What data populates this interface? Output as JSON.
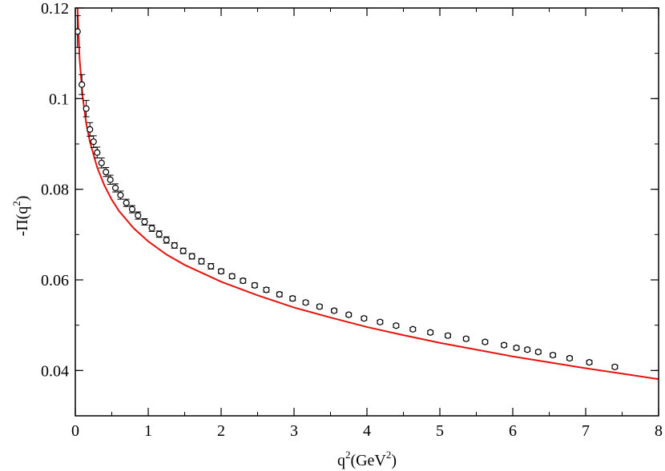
{
  "chart_data": {
    "type": "scatter",
    "title": "",
    "xlabel": {
      "base": "q",
      "sup": "2",
      "rest": "(GeV",
      "sup2": "2",
      "close": ")"
    },
    "ylabel": {
      "prefix": "-Π(q",
      "sup": "2",
      "close": ")"
    },
    "xlim": [
      0,
      8
    ],
    "ylim": [
      0.03,
      0.12
    ],
    "xticks": [
      0,
      1,
      2,
      3,
      4,
      5,
      6,
      7,
      8
    ],
    "yticks": [
      0.04,
      0.06,
      0.08,
      0.1,
      0.12
    ],
    "ytick_labels": [
      "0.04",
      "0.06",
      "0.08",
      "0.1",
      "0.12"
    ],
    "grid": false,
    "legend": "none",
    "colors": {
      "points": "#000000",
      "fit": "#e8120c"
    },
    "series": [
      {
        "kind": "points-with-errorbars",
        "marker": "open-circle",
        "x": [
          0.03,
          0.09,
          0.15,
          0.2,
          0.25,
          0.3,
          0.36,
          0.42,
          0.48,
          0.55,
          0.62,
          0.7,
          0.78,
          0.86,
          0.95,
          1.05,
          1.15,
          1.25,
          1.36,
          1.48,
          1.6,
          1.73,
          1.86,
          2.0,
          2.15,
          2.3,
          2.46,
          2.62,
          2.8,
          2.98,
          3.16,
          3.35,
          3.55,
          3.75,
          3.96,
          4.18,
          4.4,
          4.63,
          4.87,
          5.11,
          5.36,
          5.62,
          5.88,
          6.05,
          6.2,
          6.35,
          6.55,
          6.78,
          7.05,
          7.4
        ],
        "y": [
          0.1148,
          0.1031,
          0.0978,
          0.0932,
          0.0905,
          0.0881,
          0.0858,
          0.0838,
          0.0821,
          0.0803,
          0.0787,
          0.077,
          0.0756,
          0.0742,
          0.0728,
          0.0714,
          0.0701,
          0.0688,
          0.0676,
          0.0664,
          0.0652,
          0.0641,
          0.063,
          0.0619,
          0.0608,
          0.0598,
          0.0588,
          0.0578,
          0.0568,
          0.0559,
          0.055,
          0.0541,
          0.0532,
          0.0523,
          0.0515,
          0.0507,
          0.0499,
          0.0491,
          0.0484,
          0.0477,
          0.047,
          0.0463,
          0.0456,
          0.045,
          0.0446,
          0.0441,
          0.0434,
          0.0427,
          0.0418,
          0.0408
        ],
        "err": [
          0.0035,
          0.0022,
          0.0018,
          0.0015,
          0.0013,
          0.0012,
          0.0011,
          0.001,
          0.001,
          0.0009,
          0.0009,
          0.0008,
          0.0008,
          0.0008,
          0.0007,
          0.0007,
          0.0007,
          0.0007,
          0.0006,
          0.0006,
          0.0006,
          0.0006,
          0.0006,
          0.0005,
          0.0005,
          0.0005,
          0.0005,
          0.0005,
          0.0005,
          0.0005,
          0.0004,
          0.0004,
          0.0004,
          0.0004,
          0.0004,
          0.0004,
          0.0004,
          0.0004,
          0.0004,
          0.0004,
          0.0004,
          0.0004,
          0.0004,
          0.0004,
          0.0004,
          0.0004,
          0.0004,
          0.0004,
          0.0004,
          0.0004
        ]
      },
      {
        "kind": "fit-line",
        "x": [
          0.03,
          0.06,
          0.1,
          0.15,
          0.2,
          0.3,
          0.4,
          0.5,
          0.6,
          0.8,
          1.0,
          1.25,
          1.5,
          2.0,
          2.5,
          3.0,
          3.5,
          4.0,
          4.5,
          5.0,
          5.5,
          6.0,
          6.5,
          7.0,
          7.5,
          8.0
        ],
        "y": [
          0.12,
          0.1085,
          0.1005,
          0.0945,
          0.0905,
          0.0848,
          0.0808,
          0.0777,
          0.0752,
          0.0714,
          0.0685,
          0.0656,
          0.0633,
          0.0596,
          0.0566,
          0.0539,
          0.0517,
          0.0496,
          0.0478,
          0.0461,
          0.0446,
          0.0431,
          0.0418,
          0.0405,
          0.0393,
          0.0381
        ]
      }
    ]
  }
}
